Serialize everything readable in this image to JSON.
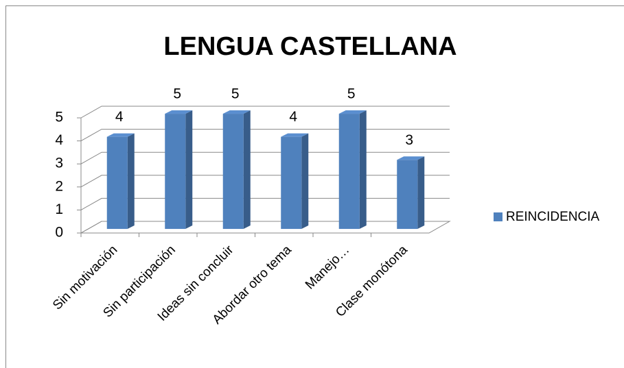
{
  "chart_data": {
    "type": "bar3d",
    "title": "LENGUA CASTELLANA",
    "categories": [
      "Sin motivación",
      "Sin participación",
      "Ideas sin concluir",
      "Abordar otro tema",
      "Manejo…",
      "Clase monótona"
    ],
    "series": [
      {
        "name": "REINCIDENCIA",
        "color": "#4f81bd",
        "values": [
          4,
          5,
          5,
          4,
          5,
          3
        ]
      }
    ],
    "ylim": [
      0,
      5
    ],
    "yticks": [
      0,
      1,
      2,
      3,
      4,
      5
    ],
    "grid": true,
    "legend": "right",
    "data_labels": true
  }
}
